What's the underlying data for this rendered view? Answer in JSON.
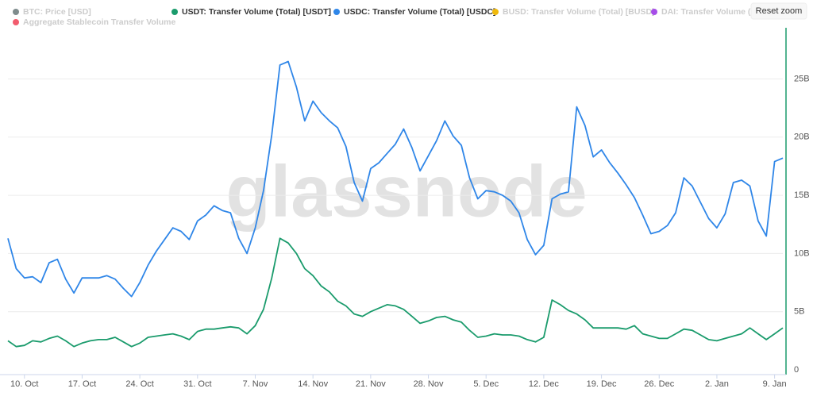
{
  "chart_data": {
    "type": "line",
    "watermark": "glassnode",
    "reset_button": "Reset zoom",
    "series": [
      {
        "name": "BTC: Price [USD]",
        "color": "#7f8c8d",
        "visible": false
      },
      {
        "name": "USDT: Transfer Volume (Total) [USDT]",
        "color": "#1a9b6c",
        "visible": true,
        "values": [
          2.5,
          2.0,
          2.1,
          2.5,
          2.4,
          2.7,
          2.9,
          2.5,
          2.0,
          2.3,
          2.5,
          2.6,
          2.6,
          2.8,
          2.4,
          2.0,
          2.3,
          2.8,
          2.9,
          3.0,
          3.1,
          2.9,
          2.6,
          3.3,
          3.5,
          3.5,
          3.6,
          3.7,
          3.6,
          3.1,
          3.8,
          5.2,
          7.9,
          11.3,
          10.9,
          10.0,
          8.7,
          8.1,
          7.2,
          6.7,
          5.9,
          5.5,
          4.8,
          4.6,
          5.0,
          5.3,
          5.6,
          5.5,
          5.2,
          4.6,
          4.0,
          4.2,
          4.5,
          4.6,
          4.3,
          4.1,
          3.4,
          2.8,
          2.9,
          3.1,
          3.0,
          3.0,
          2.9,
          2.6,
          2.4,
          2.8,
          6.0,
          5.6,
          5.1,
          4.8,
          4.3,
          3.6,
          3.6,
          3.6,
          3.6,
          3.5,
          3.8,
          3.1,
          2.9,
          2.7,
          2.7,
          3.1,
          3.5,
          3.4,
          3.0,
          2.6,
          2.5,
          2.7,
          2.9,
          3.1,
          3.6,
          3.1,
          2.6,
          3.1,
          3.6
        ]
      },
      {
        "name": "USDC: Transfer Volume (Total) [USDC]",
        "color": "#2f86e8",
        "visible": true,
        "values": [
          11.3,
          8.7,
          7.9,
          8.0,
          7.5,
          9.2,
          9.5,
          7.8,
          6.6,
          7.9,
          7.9,
          7.9,
          8.1,
          7.8,
          7.0,
          6.3,
          7.5,
          9.0,
          10.2,
          11.2,
          12.2,
          11.9,
          11.2,
          12.8,
          13.3,
          14.1,
          13.7,
          13.5,
          11.3,
          10.0,
          12.2,
          15.4,
          20.2,
          26.2,
          26.5,
          24.3,
          21.4,
          23.1,
          22.1,
          21.4,
          20.8,
          19.2,
          16.1,
          14.5,
          17.3,
          17.8,
          18.6,
          19.4,
          20.7,
          19.1,
          17.1,
          18.4,
          19.7,
          21.4,
          20.1,
          19.3,
          16.5,
          14.7,
          15.4,
          15.3,
          15.0,
          14.5,
          13.5,
          11.2,
          9.9,
          10.7,
          14.7,
          15.1,
          15.3,
          22.6,
          21.0,
          18.3,
          18.9,
          17.8,
          16.9,
          15.9,
          14.8,
          13.3,
          11.7,
          11.9,
          12.4,
          13.5,
          16.5,
          15.8,
          14.4,
          13.0,
          12.2,
          13.4,
          16.1,
          16.3,
          15.8,
          12.8,
          11.5,
          17.9,
          18.2
        ]
      },
      {
        "name": "BUSD: Transfer Volume (Total) [BUSD]",
        "color": "#f0b90b",
        "visible": false
      },
      {
        "name": "DAI: Transfer Volume (Total) [DAI]",
        "color": "#a64de8",
        "visible": false
      },
      {
        "name": "Aggregate Stablecoin Transfer Volume",
        "color": "#f25c6e",
        "visible": false
      }
    ],
    "x": [
      0,
      1,
      2,
      3,
      4,
      5,
      6,
      7,
      8,
      9,
      10,
      11,
      12,
      13,
      14,
      15,
      16,
      17,
      18,
      19,
      20,
      21,
      22,
      23,
      24,
      25,
      26,
      27,
      28,
      29,
      30,
      31,
      32,
      33,
      34,
      35,
      36,
      37,
      38,
      39,
      40,
      41,
      42,
      43,
      44,
      45,
      46,
      47,
      48,
      49,
      50,
      51,
      52,
      53,
      54,
      55,
      56,
      57,
      58,
      59,
      60,
      61,
      62,
      63,
      64,
      65,
      66,
      67,
      68,
      69,
      70,
      71,
      72,
      73,
      74,
      75,
      76,
      77,
      78,
      79,
      80,
      81,
      82,
      83,
      84,
      85,
      86,
      87,
      88,
      89,
      90,
      91,
      92,
      93,
      94
    ],
    "xlim": [
      0,
      94
    ],
    "xticks": [
      {
        "value": 2,
        "label": "10. Oct"
      },
      {
        "value": 9,
        "label": "17. Oct"
      },
      {
        "value": 16,
        "label": "24. Oct"
      },
      {
        "value": 23,
        "label": "31. Oct"
      },
      {
        "value": 30,
        "label": "7. Nov"
      },
      {
        "value": 37,
        "label": "14. Nov"
      },
      {
        "value": 44,
        "label": "21. Nov"
      },
      {
        "value": 51,
        "label": "28. Nov"
      },
      {
        "value": 58,
        "label": "5. Dec"
      },
      {
        "value": 65,
        "label": "12. Dec"
      },
      {
        "value": 72,
        "label": "19. Dec"
      },
      {
        "value": 79,
        "label": "26. Dec"
      },
      {
        "value": 86,
        "label": "2. Jan"
      },
      {
        "value": 93,
        "label": "9. Jan"
      }
    ],
    "ylim": [
      0,
      29.4
    ],
    "yticks": [
      0,
      {
        "value": 5,
        "label": "5B"
      },
      {
        "value": 10,
        "label": "10B"
      },
      {
        "value": 15,
        "label": "15B"
      },
      {
        "value": 20,
        "label": "20B"
      },
      {
        "value": 25,
        "label": "25B"
      }
    ],
    "grid": true,
    "axis_color": "#1a9b6c"
  }
}
